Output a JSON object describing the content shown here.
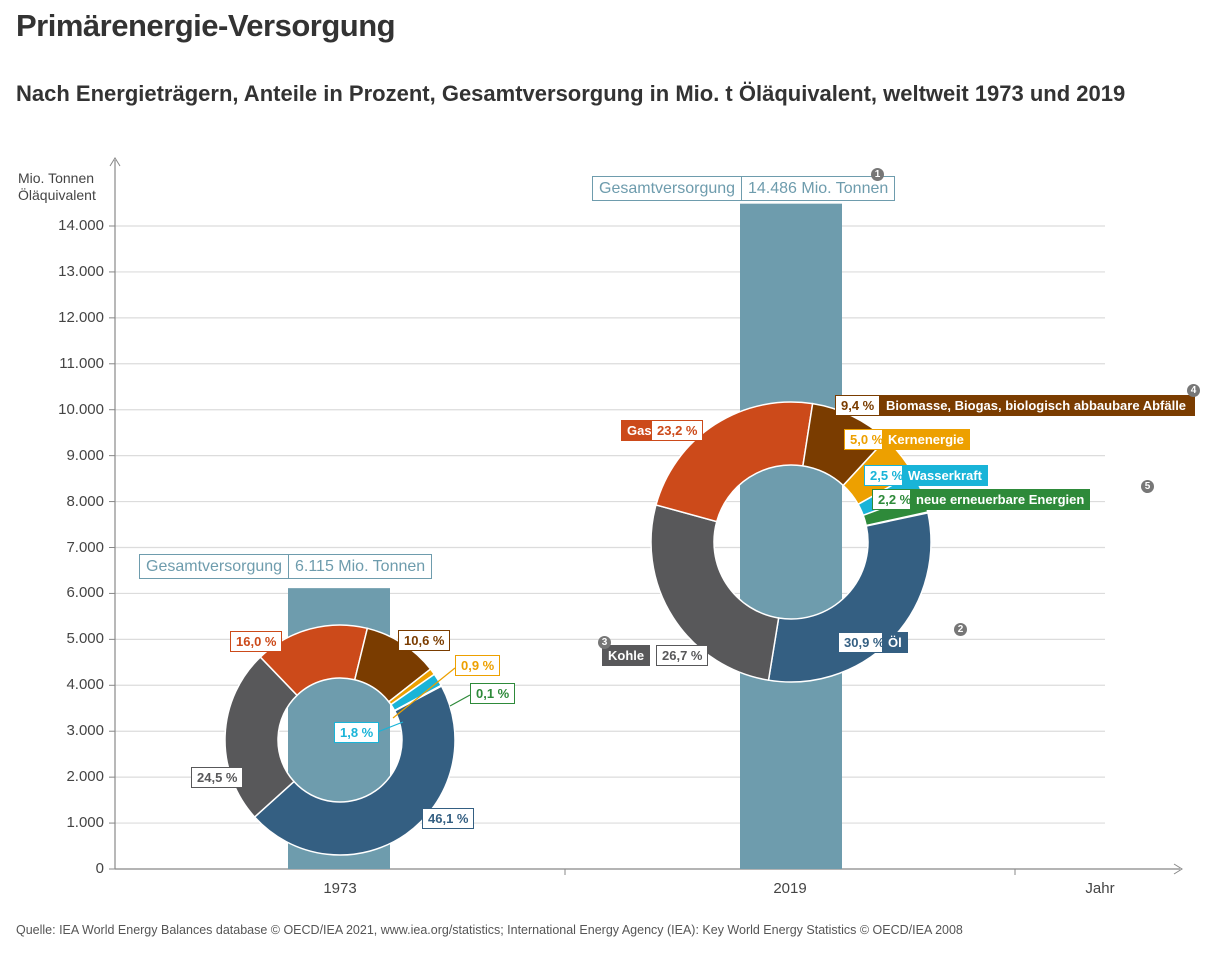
{
  "title": "Primärenergie-Versorgung",
  "subtitle": "Nach Energieträgern, Anteile in Prozent, Gesamtversorgung in Mio. t Öläquivalent, weltweit 1973 und 2019",
  "source": "Quelle: IEA World Energy Balances database © OECD/IEA 2021, www.iea.org/statistics; International Energy Agency (IEA): Key World Energy Statistics © OECD/IEA 2008",
  "chart_data": {
    "type": "bar",
    "ylabel": "Mio. Tonnen Öläquivalent",
    "xlabel": "Jahr",
    "ylim": [
      0,
      14000
    ],
    "yticks": [
      "0",
      "1.000",
      "2.000",
      "3.000",
      "4.000",
      "5.000",
      "6.000",
      "7.000",
      "8.000",
      "9.000",
      "10.000",
      "11.000",
      "12.000",
      "13.000",
      "14.000"
    ],
    "categories": [
      "1973",
      "2019"
    ],
    "values": [
      6115,
      14486
    ],
    "total_label": "Gesamtversorgung",
    "total_texts": [
      "6.115 Mio. Tonnen",
      "14.486 Mio. Tonnen"
    ],
    "bar_color": "#6e9cad",
    "segments": [
      {
        "name": "Öl",
        "color": "#345f82",
        "values": [
          46.1,
          30.9
        ],
        "labels": [
          "46,1 %",
          "30,9 %"
        ]
      },
      {
        "name": "Kohle",
        "color": "#58585a",
        "values": [
          24.5,
          26.7
        ],
        "labels": [
          "24,5 %",
          "26,7 %"
        ]
      },
      {
        "name": "Gas",
        "color": "#cc4a1a",
        "values": [
          16.0,
          23.2
        ],
        "labels": [
          "16,0 %",
          "23,2 %"
        ]
      },
      {
        "name": "Biomasse, Biogas, biologisch abbaubare Abfälle",
        "color": "#7a3c00",
        "values": [
          10.6,
          9.4
        ],
        "labels": [
          "10,6 %",
          "9,4 %"
        ]
      },
      {
        "name": "Kernenergie",
        "color": "#eda000",
        "values": [
          0.9,
          5.0
        ],
        "labels": [
          "0,9 %",
          "5,0 %"
        ]
      },
      {
        "name": "Wasserkraft",
        "color": "#19b4d8",
        "values": [
          1.8,
          2.5
        ],
        "labels": [
          "1,8 %",
          "2,5 %"
        ]
      },
      {
        "name": "neue erneuerbare Energien",
        "color": "#2e8a3a",
        "values": [
          0.1,
          2.2
        ],
        "labels": [
          "0,1 %",
          "2,2 %"
        ]
      }
    ],
    "footnotes": [
      "1",
      "2",
      "3",
      "4",
      "5"
    ],
    "grid": true
  }
}
